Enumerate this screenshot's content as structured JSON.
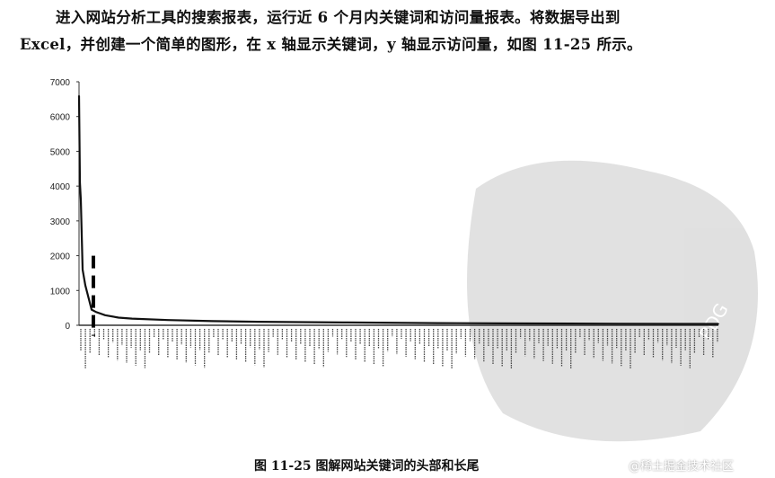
{
  "text": {
    "paragraph_line1": "进入网站分析工具的搜索报表，运行近 6 个月内关键词和访问量报表。将数据导出到",
    "paragraph_line2": "Excel，并创建一个简单的图形，在 x 轴显示关键词，y 轴显示访问量，如图 11-25 所示。",
    "caption": "图 11-25   图解网站关键词的头部和长尾",
    "footer_watermark": "@稀土掘金技术社区",
    "stamp_watermark": "PDG"
  },
  "chart_data": {
    "type": "line",
    "title": "",
    "xlabel": "",
    "ylabel": "",
    "ylim": [
      0,
      7000
    ],
    "yticks": [
      0,
      1000,
      2000,
      3000,
      4000,
      5000,
      6000,
      7000
    ],
    "x_axis": "keywords ranked by visits (tick labels illegible)",
    "category_count": 713,
    "grid": false,
    "legend": "none",
    "line_color": "#111111",
    "points": [
      {
        "rank": 1,
        "visits": 6600
      },
      {
        "rank": 2,
        "visits": 4100
      },
      {
        "rank": 3,
        "visits": 3600
      },
      {
        "rank": 5,
        "visits": 1600
      },
      {
        "rank": 8,
        "visits": 1150
      },
      {
        "rank": 12,
        "visits": 750
      },
      {
        "rank": 15,
        "visits": 450
      },
      {
        "rank": 20,
        "visits": 380
      },
      {
        "rank": 30,
        "visits": 290
      },
      {
        "rank": 45,
        "visits": 220
      },
      {
        "rank": 60,
        "visits": 190
      },
      {
        "rank": 100,
        "visits": 150
      },
      {
        "rank": 150,
        "visits": 120
      },
      {
        "rank": 200,
        "visits": 100
      },
      {
        "rank": 300,
        "visits": 80
      },
      {
        "rank": 400,
        "visits": 62
      },
      {
        "rank": 500,
        "visits": 52
      },
      {
        "rank": 600,
        "visits": 45
      },
      {
        "rank": 713,
        "visits": 40
      }
    ],
    "annotation": {
      "type": "dashed-vertical-line",
      "rank": 17,
      "from_visits": 2000,
      "to_visits": -300,
      "meaning": "head / long-tail divider"
    }
  }
}
